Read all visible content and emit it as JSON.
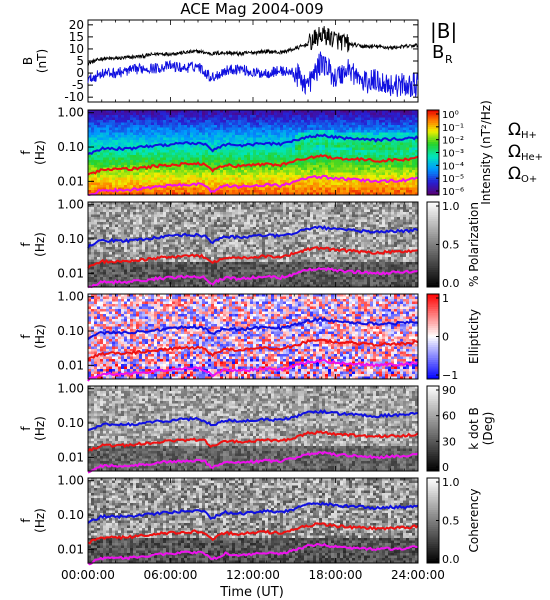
{
  "title": "ACE Mag 2004-009",
  "colors": {
    "black": "#000000",
    "blue": "#1010e0",
    "red": "#ee1111",
    "magenta": "#ee11ee"
  },
  "x_axis": {
    "label": "Time (UT)",
    "ticks": [
      "00:00:00",
      "06:00:00",
      "12:00:00",
      "18:00:00",
      "24:00:00"
    ]
  },
  "legends": {
    "b_abs": "|B|",
    "b_r_main": "B",
    "b_r_sub": "R",
    "omega": "Ω",
    "h_sub": "H+",
    "he_sub": "He+",
    "o_sub": "O+"
  },
  "chart_data": [
    {
      "type": "line",
      "panel": "magnetic-field",
      "ylabel": "B",
      "yunit": "(nT)",
      "ylim": [
        -12,
        22
      ],
      "yticks": [
        "20",
        "15",
        "10",
        "5",
        "0",
        "-5",
        "-10"
      ],
      "x_hours": [
        0,
        1,
        2,
        3,
        4,
        5,
        6,
        7,
        8,
        9,
        10,
        11,
        12,
        13,
        14,
        15,
        16,
        17,
        18,
        19,
        20,
        21,
        22,
        23,
        24
      ],
      "series": [
        {
          "name": "|B|",
          "color": "#000000",
          "values": [
            4,
            6,
            6,
            6.5,
            7,
            8,
            8,
            8.5,
            9,
            8,
            8.5,
            8,
            8.5,
            9,
            8.5,
            10,
            12,
            16,
            14,
            12,
            11,
            11,
            10.5,
            11,
            11.5
          ]
        },
        {
          "name": "B_R",
          "color": "#1010e0",
          "values": [
            -3,
            0,
            0,
            1,
            2,
            2,
            3,
            2,
            3,
            -2,
            1,
            2,
            0,
            0,
            1,
            0,
            -5,
            5,
            -2,
            2,
            -4,
            -3,
            -5,
            -5,
            -5
          ]
        }
      ]
    },
    {
      "type": "heatmap",
      "panel": "intensity",
      "ylabel": "f",
      "yunit": "(Hz)",
      "yticks": [
        "1.00",
        "0.10",
        "0.01"
      ],
      "colorbar_label": "Intensity (nT²/Hz)",
      "colorbar_ticks": [
        "10⁰",
        "10⁻¹",
        "10⁻²",
        "10⁻³",
        "10⁻⁴",
        "10⁻⁵",
        "10⁻⁶"
      ]
    },
    {
      "type": "heatmap",
      "panel": "polarization",
      "ylabel": "f",
      "yunit": "(Hz)",
      "yticks": [
        "1.00",
        "0.10",
        "0.01"
      ],
      "colorbar_label": "% Polarization",
      "colorbar_ticks": [
        "1.0",
        "0.5",
        "0.0"
      ]
    },
    {
      "type": "heatmap",
      "panel": "ellipticity",
      "ylabel": "f",
      "yunit": "(Hz)",
      "yticks": [
        "1.00",
        "0.10",
        "0.01"
      ],
      "colorbar_label": "Ellipticity",
      "colorbar_ticks": [
        "1",
        "0",
        "−1"
      ]
    },
    {
      "type": "heatmap",
      "panel": "k-dot-b",
      "ylabel": "f",
      "yunit": "(Hz)",
      "yticks": [
        "1.00",
        "0.10",
        "0.01"
      ],
      "colorbar_label": "k dot B",
      "colorbar_unit": "(Deg)",
      "colorbar_ticks": [
        "90",
        "60",
        "30",
        "0"
      ]
    },
    {
      "type": "heatmap",
      "panel": "coherency",
      "ylabel": "f",
      "yunit": "(Hz)",
      "yticks": [
        "1.00",
        "0.10",
        "0.01"
      ],
      "colorbar_label": "Coherency",
      "colorbar_ticks": [
        "1.0",
        "0.5",
        "0.0"
      ]
    }
  ],
  "gyrofrequency_lines": {
    "x_hours": [
      0,
      1,
      2,
      3,
      4,
      5,
      6,
      7,
      8,
      8.5,
      9,
      10,
      11,
      12,
      13,
      14,
      15,
      16,
      17,
      18,
      19,
      20,
      21,
      22,
      23,
      24
    ],
    "H+": [
      0.06,
      0.09,
      0.09,
      0.09,
      0.1,
      0.11,
      0.12,
      0.13,
      0.13,
      0.12,
      0.08,
      0.12,
      0.11,
      0.12,
      0.13,
      0.12,
      0.15,
      0.2,
      0.22,
      0.19,
      0.18,
      0.17,
      0.16,
      0.17,
      0.17,
      0.19
    ],
    "He+": [
      0.015,
      0.022,
      0.022,
      0.023,
      0.025,
      0.028,
      0.03,
      0.032,
      0.033,
      0.03,
      0.02,
      0.03,
      0.028,
      0.03,
      0.032,
      0.03,
      0.038,
      0.05,
      0.055,
      0.048,
      0.045,
      0.043,
      0.04,
      0.042,
      0.043,
      0.048
    ],
    "O+": [
      0.0038,
      0.0056,
      0.0056,
      0.0057,
      0.0062,
      0.007,
      0.0075,
      0.008,
      0.0083,
      0.0075,
      0.005,
      0.0075,
      0.007,
      0.0075,
      0.008,
      0.0075,
      0.0095,
      0.0125,
      0.0138,
      0.012,
      0.0113,
      0.0108,
      0.01,
      0.0105,
      0.0108,
      0.012
    ]
  }
}
